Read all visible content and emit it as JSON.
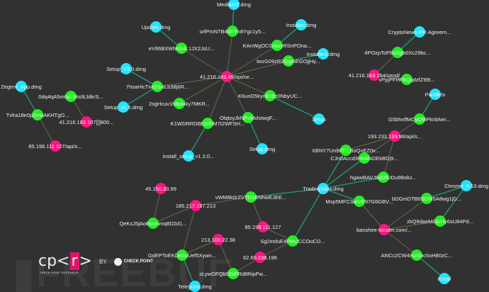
{
  "colors": {
    "background": "#313131",
    "ip_node": "#ff1480",
    "hash_node": "#22ee22",
    "file_node": "#22e4ff",
    "edge_file": "#1f9e78",
    "edge_ip": "#6e6a42"
  },
  "nodes": [
    {
      "id": "c1",
      "type": "ip",
      "label": "41.216.183.49/api/se..."
    },
    {
      "id": "g1",
      "type": "hash",
      "label": "urfPmNTB4dXYn8Ygc1y5..."
    },
    {
      "id": "f1",
      "type": "file",
      "label": "MediaKIT.dmg"
    },
    {
      "id": "g2",
      "type": "hash",
      "label": "eV86BXWhK84L1JX2JsU..."
    },
    {
      "id": "f2",
      "type": "file",
      "label": "Update.dmg"
    },
    {
      "id": "g3",
      "type": "hash",
      "label": "KAnWgOCGrqvyRSnPOna..."
    },
    {
      "id": "f3",
      "type": "file",
      "label": "Installer.dmg"
    },
    {
      "id": "g4",
      "type": "hash",
      "label": "lwzG09zR2QgmEGOjjHy..."
    },
    {
      "id": "f4",
      "type": "file",
      "label": "Installerx.dmg"
    },
    {
      "id": "g5",
      "type": "hash",
      "label": "7hsaHicTxe2SwLb38j6R..."
    },
    {
      "id": "f5",
      "type": "file",
      "label": "Setup_V3.0.dmg"
    },
    {
      "id": "f6",
      "type": "file",
      "label": "Setup_v1.6.dmg"
    },
    {
      "id": "g6",
      "type": "hash",
      "label": "2sgHcuv1h8pl4ky7MKR..."
    },
    {
      "id": "g7",
      "type": "hash",
      "label": "K1WDRRD6E2dhM7t2WFSH..."
    },
    {
      "id": "f7",
      "type": "file",
      "label": "install_setup_v1.2.0..."
    },
    {
      "id": "g8",
      "type": "hash",
      "label": "OlqtzyJkNPxMxlstwgF..."
    },
    {
      "id": "f8",
      "type": "file",
      "label": "Setup.dmg"
    },
    {
      "id": "g9",
      "type": "hash",
      "label": "K6unD5kyn81bb0NbyUC..."
    },
    {
      "id": "f9",
      "type": "file",
      "label": "Setup"
    },
    {
      "id": "f10",
      "type": "file",
      "label": "Zegent_App.dmg"
    },
    {
      "id": "g10",
      "type": "hash",
      "label": "Tvlra18e0pZmaAKHTgO..."
    },
    {
      "id": "p2",
      "type": "ip",
      "label": "85.198.111.127/api/s..."
    },
    {
      "id": "g11",
      "type": "hash",
      "label": "0dq4qA5m6d7Bts9LblkrS..."
    },
    {
      "id": "p3",
      "type": "ip",
      "label": "41.216.183.107[]]800..."
    },
    {
      "id": "p4",
      "type": "ip",
      "label": "41.216.183.154/send/"
    },
    {
      "id": "g12",
      "type": "hash",
      "label": "4POzpToPBxSgb0Xc29bc..."
    },
    {
      "id": "f11",
      "type": "file",
      "label": "CryptoNews-PR-Agreem..."
    },
    {
      "id": "g13",
      "type": "hash",
      "label": "vPpjPFHFbQqdzfZ9l9..."
    },
    {
      "id": "f12",
      "type": "file",
      "label": "Parallels"
    },
    {
      "id": "g14",
      "type": "hash",
      "label": "G5bhxflMCyO9IPknblwn..."
    },
    {
      "id": "p5",
      "type": "ip",
      "label": "193.233.133.98/api/s..."
    },
    {
      "id": "g15",
      "type": "hash",
      "label": "XBNY7Un96TrLBoQvEZ0x..."
    },
    {
      "id": "g16",
      "type": "hash",
      "label": "CJn0Accd3HnANDEkBDj9..."
    },
    {
      "id": "g17",
      "type": "hash",
      "label": "hgawBAVJ8yOfUDu9Bokz..."
    },
    {
      "id": "f13",
      "type": "file",
      "label": "TradingView.dmg"
    },
    {
      "id": "g18",
      "type": "hash",
      "label": "vWM8k0rZVTD1BNhwEJEE..."
    },
    {
      "id": "g19",
      "type": "hash",
      "label": "Mxp5MFC3arVE97G6GBV..."
    },
    {
      "id": "g20",
      "type": "hash",
      "label": "Sg2esfuE4FhhJCCOuCD..."
    },
    {
      "id": "f14",
      "type": "file",
      "label": "Chrome_6.53.dmg"
    },
    {
      "id": "g21",
      "type": "hash",
      "label": "bDGmDTB6SDM5A8wg1jD..."
    },
    {
      "id": "g22",
      "type": "hash",
      "label": "zkQ9daeMGjvHy6sU84Pd..."
    },
    {
      "id": "p6",
      "type": "ip",
      "label": "banshee-stealer.com/..."
    },
    {
      "id": "g23",
      "type": "hash",
      "label": "ANCc2CW4mzEoc5oH80zC..."
    },
    {
      "id": "f15",
      "type": "file",
      "label": "install"
    },
    {
      "id": "p7",
      "type": "ip",
      "label": "45.150.33.99"
    },
    {
      "id": "g24",
      "type": "hash",
      "label": "QeKsJ5jAoBscmmq8D2d1..."
    },
    {
      "id": "p8",
      "type": "ip",
      "label": "185.217.197.213"
    },
    {
      "id": "g25",
      "type": "hash",
      "label": "GdEPToEKDe2uUef5Xywn..."
    },
    {
      "id": "p9",
      "type": "ip",
      "label": "213.108.22.38"
    },
    {
      "id": "g26",
      "type": "hash",
      "label": "sLywOFQb02dFRd8RipPw..."
    },
    {
      "id": "f16",
      "type": "file",
      "label": "Telegram.dmg"
    },
    {
      "id": "p10",
      "type": "ip",
      "label": "85.198.111.127"
    },
    {
      "id": "p11",
      "type": "ip",
      "label": "62.60.238.196"
    }
  ],
  "edges": [
    [
      "c1",
      "g1"
    ],
    [
      "g1",
      "f1"
    ],
    [
      "c1",
      "g2"
    ],
    [
      "g2",
      "f2"
    ],
    [
      "c1",
      "g3"
    ],
    [
      "g3",
      "f3"
    ],
    [
      "c1",
      "g4"
    ],
    [
      "g4",
      "f4"
    ],
    [
      "c1",
      "g5"
    ],
    [
      "g5",
      "f5"
    ],
    [
      "g5",
      "f6"
    ],
    [
      "c1",
      "g6"
    ],
    [
      "c1",
      "g7"
    ],
    [
      "g7",
      "f7"
    ],
    [
      "c1",
      "g8"
    ],
    [
      "g8",
      "f8"
    ],
    [
      "c1",
      "g9"
    ],
    [
      "g9",
      "f9"
    ],
    [
      "f10",
      "g10"
    ],
    [
      "g10",
      "p2"
    ],
    [
      "g11",
      "p3"
    ],
    [
      "p4",
      "g12"
    ],
    [
      "g12",
      "f11"
    ],
    [
      "p4",
      "g13"
    ],
    [
      "f12",
      "g14"
    ],
    [
      "g14",
      "p5"
    ],
    [
      "p5",
      "g15"
    ],
    [
      "p5",
      "g16"
    ],
    [
      "p5",
      "g17"
    ],
    [
      "f13",
      "g15"
    ],
    [
      "f13",
      "g16"
    ],
    [
      "f13",
      "g17"
    ],
    [
      "f13",
      "g18"
    ],
    [
      "f13",
      "g19"
    ],
    [
      "f13",
      "g20"
    ],
    [
      "f14",
      "g21"
    ],
    [
      "f14",
      "g22"
    ],
    [
      "g19",
      "p6"
    ],
    [
      "g21",
      "p6"
    ],
    [
      "g22",
      "p6"
    ],
    [
      "p6",
      "g23"
    ],
    [
      "g23",
      "f15"
    ],
    [
      "p7",
      "g24"
    ],
    [
      "g24",
      "p8"
    ],
    [
      "g18",
      "p8"
    ],
    [
      "p8",
      "g25"
    ],
    [
      "g25",
      "p9"
    ],
    [
      "p9",
      "g26"
    ],
    [
      "g25",
      "f16"
    ],
    [
      "g18",
      "p10"
    ],
    [
      "p10",
      "g20"
    ],
    [
      "g26",
      "p11"
    ],
    [
      "p11",
      "g20"
    ]
  ],
  "branding": {
    "logo_text": "cp<r>",
    "logo_sub": "CHECK POINT RESEARCH",
    "by": "BY",
    "company": "CHECK POINT",
    "watermark": "FREEBUF"
  }
}
